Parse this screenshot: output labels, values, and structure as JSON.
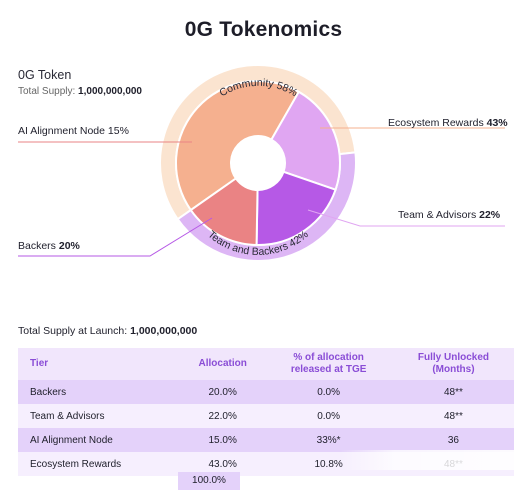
{
  "title": "0G Tokenomics",
  "token": {
    "name": "0G Token",
    "supply_label": "Total Supply: ",
    "supply_value": "1,000,000,000"
  },
  "colors": {
    "community": "#f5b08f",
    "ai_node": "#ea8384",
    "backers": "#b659e6",
    "team": "#e0a6f2",
    "ring_community": "#fbe4d0",
    "ring_team_backers": "#ddb6f5",
    "header_text": "#8a4dd6"
  },
  "chart_data": {
    "type": "pie",
    "categories": [
      "Ecosystem Rewards",
      "AI Alignment Node",
      "Backers",
      "Team & Advisors"
    ],
    "values": [
      43,
      15,
      20,
      22
    ],
    "outer_groups": [
      {
        "label": "Community 58%",
        "value": 58
      },
      {
        "label": "Team and Backers 42%",
        "value": 42
      }
    ],
    "labels": [
      {
        "name": "AI Alignment Node",
        "pct": "15%"
      },
      {
        "name": "Backers",
        "pct": "20%"
      },
      {
        "name": "Ecosystem Rewards",
        "pct": "43%"
      },
      {
        "name": "Team & Advisors",
        "pct": "22%"
      }
    ]
  },
  "launch": {
    "label": "Total Supply at Launch: ",
    "value": "1,000,000,000"
  },
  "table": {
    "headers": {
      "tier": "Tier",
      "allocation": "Allocation",
      "tge_1": "% of allocation",
      "tge_2": "released at TGE",
      "unlock_1": "Fully Unlocked",
      "unlock_2": "(Months)"
    },
    "rows": [
      {
        "tier": "Backers",
        "allocation": "20.0%",
        "tge": "0.0%",
        "unlock": "48**"
      },
      {
        "tier": "Team & Advisors",
        "allocation": "22.0%",
        "tge": "0.0%",
        "unlock": "48**"
      },
      {
        "tier": "AI Alignment Node",
        "allocation": "15.0%",
        "tge": "33%*",
        "unlock": "36"
      },
      {
        "tier": "Ecosystem Rewards",
        "allocation": "43.0%",
        "tge": "10.8%",
        "unlock": "48**"
      }
    ],
    "total": "100.0%"
  }
}
